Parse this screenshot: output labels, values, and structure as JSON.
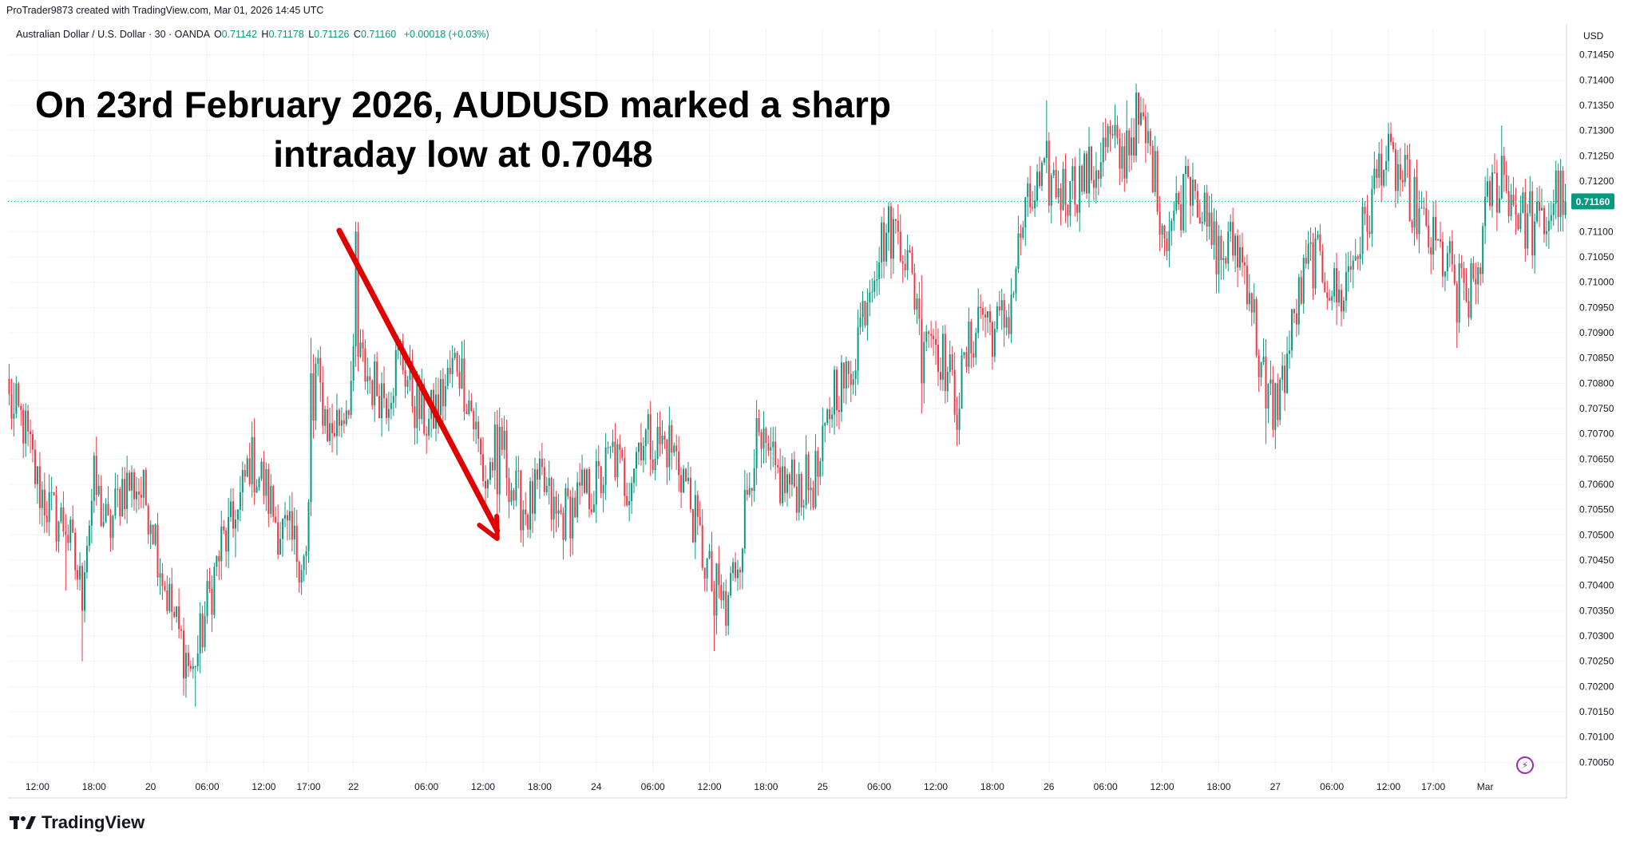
{
  "header": {
    "created_by": "ProTrader9873 created with TradingView.com, Mar 01, 2026 14:45 UTC",
    "symbol": "Australian Dollar / U.S. Dollar · 30 · OANDA",
    "open_label": "O",
    "open": "0.71142",
    "high_label": "H",
    "high": "0.71178",
    "low_label": "L",
    "low": "0.71126",
    "close_label": "C",
    "close": "0.71160",
    "change": "+0.00018 (+0.03%)"
  },
  "annotation": {
    "line1": "On 23rd February 2026, AUDUSD marked a sharp",
    "line2": "intraday low at 0.7048"
  },
  "price_axis": {
    "currency": "USD",
    "current_price": "0.71160",
    "labels": [
      "0.71450",
      "0.71400",
      "0.71350",
      "0.71300",
      "0.71250",
      "0.71200",
      "0.71100",
      "0.71050",
      "0.71000",
      "0.70950",
      "0.70900",
      "0.70850",
      "0.70800",
      "0.70750",
      "0.70700",
      "0.70650",
      "0.70600",
      "0.70550",
      "0.70500",
      "0.70450",
      "0.70400",
      "0.70350",
      "0.70300",
      "0.70250",
      "0.70200",
      "0.70150",
      "0.70100",
      "0.70050"
    ]
  },
  "time_axis": {
    "labels": [
      "12:00",
      "18:00",
      "20",
      "06:00",
      "12:00",
      "17:00",
      "22",
      "06:00",
      "12:00",
      "18:00",
      "24",
      "06:00",
      "12:00",
      "18:00",
      "25",
      "06:00",
      "12:00",
      "18:00",
      "26",
      "06:00",
      "12:00",
      "18:00",
      "27",
      "06:00",
      "12:00",
      "17:00",
      "Mar"
    ]
  },
  "brand": "TradingView",
  "colors": {
    "up": "#089981",
    "down": "#F23645",
    "arrow": "#E00000",
    "grid": "#F0F3FA"
  },
  "chart_data": {
    "type": "candlestick",
    "instrument": "AUDUSD",
    "timeframe": "30",
    "ylim": [
      0.7003,
      0.7147
    ],
    "current_price": 0.7116,
    "annotated_low": 0.7048,
    "arrow": {
      "from_index": 140,
      "to_index": 207
    },
    "x_labels": [
      {
        "index": 12,
        "label": "12:00"
      },
      {
        "index": 36,
        "label": "18:00"
      },
      {
        "index": 60,
        "label": "20"
      },
      {
        "index": 84,
        "label": "06:00"
      },
      {
        "index": 108,
        "label": "12:00"
      },
      {
        "index": 127,
        "label": "17:00"
      },
      {
        "index": 146,
        "label": "22"
      },
      {
        "index": 177,
        "label": "06:00"
      },
      {
        "index": 201,
        "label": "12:00"
      },
      {
        "index": 225,
        "label": "18:00"
      },
      {
        "index": 249,
        "label": "24"
      },
      {
        "index": 273,
        "label": "06:00"
      },
      {
        "index": 297,
        "label": "12:00"
      },
      {
        "index": 321,
        "label": "18:00"
      },
      {
        "index": 345,
        "label": "25"
      },
      {
        "index": 369,
        "label": "06:00"
      },
      {
        "index": 393,
        "label": "12:00"
      },
      {
        "index": 417,
        "label": "18:00"
      },
      {
        "index": 441,
        "label": "26"
      },
      {
        "index": 465,
        "label": "06:00"
      },
      {
        "index": 489,
        "label": "12:00"
      },
      {
        "index": 513,
        "label": "18:00"
      },
      {
        "index": 537,
        "label": "27"
      },
      {
        "index": 561,
        "label": "06:00"
      },
      {
        "index": 585,
        "label": "12:00"
      },
      {
        "index": 604,
        "label": "17:00"
      },
      {
        "index": 626,
        "label": "Mar"
      }
    ],
    "path": [
      [
        0,
        0.7076
      ],
      [
        6,
        0.7072
      ],
      [
        12,
        0.706
      ],
      [
        18,
        0.7054
      ],
      [
        24,
        0.7052
      ],
      [
        30,
        0.704
      ],
      [
        36,
        0.706
      ],
      [
        42,
        0.705
      ],
      [
        48,
        0.706
      ],
      [
        54,
        0.706
      ],
      [
        60,
        0.7055
      ],
      [
        66,
        0.704
      ],
      [
        72,
        0.703
      ],
      [
        78,
        0.7022
      ],
      [
        84,
        0.7036
      ],
      [
        90,
        0.7048
      ],
      [
        96,
        0.7052
      ],
      [
        102,
        0.7065
      ],
      [
        108,
        0.706
      ],
      [
        114,
        0.7052
      ],
      [
        120,
        0.7048
      ],
      [
        126,
        0.7045
      ],
      [
        130,
        0.7082
      ],
      [
        136,
        0.707
      ],
      [
        142,
        0.7075
      ],
      [
        148,
        0.7085
      ],
      [
        154,
        0.708
      ],
      [
        160,
        0.7078
      ],
      [
        166,
        0.7086
      ],
      [
        172,
        0.7076
      ],
      [
        178,
        0.7072
      ],
      [
        184,
        0.7078
      ],
      [
        190,
        0.7085
      ],
      [
        196,
        0.7075
      ],
      [
        202,
        0.706
      ],
      [
        208,
        0.707
      ],
      [
        214,
        0.7058
      ],
      [
        220,
        0.7055
      ],
      [
        226,
        0.706
      ],
      [
        232,
        0.7053
      ],
      [
        238,
        0.7055
      ],
      [
        244,
        0.7058
      ],
      [
        250,
        0.706
      ],
      [
        256,
        0.7066
      ],
      [
        262,
        0.706
      ],
      [
        268,
        0.707
      ],
      [
        274,
        0.7068
      ],
      [
        280,
        0.7068
      ],
      [
        286,
        0.7062
      ],
      [
        292,
        0.705
      ],
      [
        298,
        0.704
      ],
      [
        304,
        0.7036
      ],
      [
        310,
        0.7048
      ],
      [
        316,
        0.7068
      ],
      [
        322,
        0.7064
      ],
      [
        328,
        0.706
      ],
      [
        334,
        0.706
      ],
      [
        340,
        0.706
      ],
      [
        344,
        0.7063
      ],
      [
        350,
        0.708
      ],
      [
        356,
        0.708
      ],
      [
        360,
        0.709
      ],
      [
        366,
        0.7103
      ],
      [
        372,
        0.711
      ],
      [
        378,
        0.711
      ],
      [
        384,
        0.7098
      ],
      [
        390,
        0.7092
      ],
      [
        396,
        0.7085
      ],
      [
        402,
        0.7076
      ],
      [
        406,
        0.7085
      ],
      [
        412,
        0.7095
      ],
      [
        418,
        0.709
      ],
      [
        424,
        0.7094
      ],
      [
        430,
        0.7112
      ],
      [
        436,
        0.7118
      ],
      [
        442,
        0.712
      ],
      [
        448,
        0.7118
      ],
      [
        454,
        0.712
      ],
      [
        460,
        0.7122
      ],
      [
        466,
        0.7128
      ],
      [
        472,
        0.7124
      ],
      [
        478,
        0.7132
      ],
      [
        484,
        0.7126
      ],
      [
        490,
        0.711
      ],
      [
        496,
        0.7115
      ],
      [
        502,
        0.7122
      ],
      [
        508,
        0.711
      ],
      [
        514,
        0.7105
      ],
      [
        520,
        0.7108
      ],
      [
        526,
        0.71
      ],
      [
        530,
        0.7085
      ],
      [
        536,
        0.7075
      ],
      [
        540,
        0.708
      ],
      [
        546,
        0.7095
      ],
      [
        552,
        0.7105
      ],
      [
        558,
        0.7102
      ],
      [
        564,
        0.7096
      ],
      [
        570,
        0.7105
      ],
      [
        576,
        0.7112
      ],
      [
        582,
        0.7125
      ],
      [
        588,
        0.7122
      ],
      [
        594,
        0.7118
      ],
      [
        600,
        0.711
      ],
      [
        606,
        0.7106
      ],
      [
        612,
        0.7102
      ],
      [
        618,
        0.7096
      ],
      [
        622,
        0.71
      ],
      [
        628,
        0.7118
      ],
      [
        634,
        0.712
      ],
      [
        640,
        0.7114
      ],
      [
        646,
        0.711
      ],
      [
        652,
        0.7112
      ],
      [
        656,
        0.7118
      ],
      [
        660,
        0.7116
      ]
    ],
    "spikes": [
      [
        2,
        0.707,
        0.7074
      ],
      [
        24,
        0.7039,
        0.705
      ],
      [
        31,
        0.7025,
        0.7035
      ],
      [
        79,
        0.7016,
        0.7024
      ],
      [
        96,
        0.7055,
        0.7053
      ],
      [
        128,
        0.7089,
        0.7082
      ],
      [
        147,
        0.7112,
        0.711
      ],
      [
        207,
        0.7049,
        0.7058
      ],
      [
        299,
        0.7027,
        0.7034
      ],
      [
        304,
        0.703,
        0.7032
      ],
      [
        377,
        0.7114,
        0.711
      ],
      [
        387,
        0.7074,
        0.708
      ],
      [
        440,
        0.7136,
        0.7128
      ],
      [
        450,
        0.7115,
        0.712
      ],
      [
        474,
        0.7136,
        0.713
      ],
      [
        499,
        0.7125,
        0.7123
      ],
      [
        533,
        0.7068,
        0.7075
      ],
      [
        563,
        0.7098,
        0.7096
      ],
      [
        594,
        0.7113,
        0.7112
      ],
      [
        614,
        0.7087,
        0.7092
      ],
      [
        633,
        0.7131,
        0.7125
      ],
      [
        645,
        0.7121,
        0.7118
      ]
    ]
  }
}
